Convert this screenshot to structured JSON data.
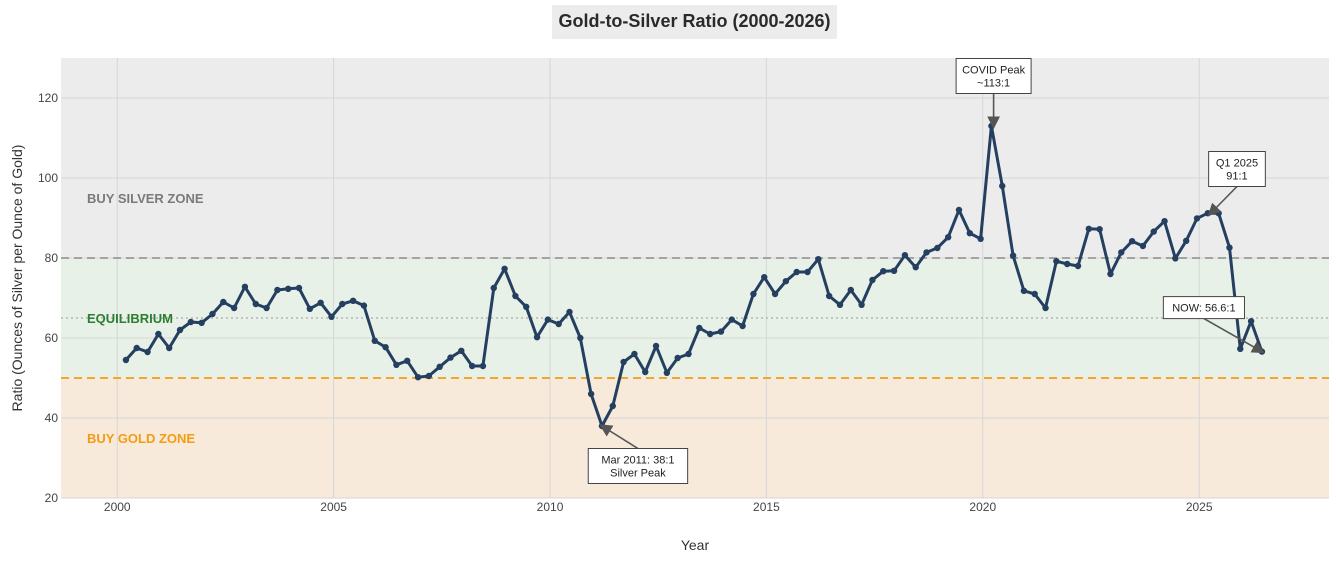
{
  "chart_data": {
    "type": "line",
    "title": "Gold-to-Silver Ratio (2000-2026)",
    "xlabel": "Year",
    "ylabel": "Ratio (Ounces of Silver per Ounce of Gold)",
    "xlim": [
      1998.7,
      2028.0
    ],
    "ylim": [
      20,
      130
    ],
    "xticks": [
      2000,
      2005,
      2010,
      2015,
      2020,
      2025
    ],
    "yticks": [
      20,
      40,
      60,
      80,
      100,
      120
    ],
    "grid": true,
    "zones": [
      {
        "label": "BUY SILVER ZONE",
        "from": 80,
        "to": 130,
        "color": "#ececec",
        "label_color": "#7a7a7a",
        "label_y": 95
      },
      {
        "label": "EQUILIBRIUM",
        "from": 50,
        "to": 80,
        "color": "#e8f1e7",
        "label_color": "#2e7d32",
        "label_y": 65
      },
      {
        "label": "BUY GOLD ZONE",
        "from": 20,
        "to": 50,
        "color": "#f8eadb",
        "label_color": "#f39c12",
        "label_y": 35
      }
    ],
    "reference_lines": [
      {
        "y": 80,
        "style": "dashed",
        "color": "#999999"
      },
      {
        "y": 65,
        "style": "dotted",
        "color": "#aaaaaa"
      },
      {
        "y": 50,
        "style": "dashed",
        "color": "#f39c12"
      }
    ],
    "series": [
      {
        "color": "#243f60",
        "x": [
          2000.2,
          2000.45,
          2000.7,
          2000.95,
          2001.2,
          2001.45,
          2001.7,
          2001.95,
          2002.2,
          2002.45,
          2002.7,
          2002.95,
          2003.2,
          2003.45,
          2003.7,
          2003.95,
          2004.2,
          2004.45,
          2004.7,
          2004.95,
          2005.2,
          2005.45,
          2005.7,
          2005.95,
          2006.2,
          2006.45,
          2006.7,
          2006.95,
          2007.2,
          2007.45,
          2007.7,
          2007.95,
          2008.2,
          2008.45,
          2008.7,
          2008.95,
          2009.2,
          2009.45,
          2009.7,
          2009.95,
          2010.2,
          2010.45,
          2010.7,
          2010.95,
          2011.2,
          2011.45,
          2011.7,
          2011.95,
          2012.2,
          2012.45,
          2012.7,
          2012.95,
          2013.2,
          2013.45,
          2013.7,
          2013.95,
          2014.2,
          2014.45,
          2014.7,
          2014.95,
          2015.2,
          2015.45,
          2015.7,
          2015.95,
          2016.2,
          2016.45,
          2016.7,
          2016.95,
          2017.2,
          2017.45,
          2017.7,
          2017.95,
          2018.2,
          2018.45,
          2018.7,
          2018.95,
          2019.2,
          2019.45,
          2019.7,
          2019.95,
          2020.2,
          2020.45,
          2020.7,
          2020.95,
          2021.2,
          2021.45,
          2021.7,
          2021.95,
          2022.2,
          2022.45,
          2022.7,
          2022.95,
          2023.2,
          2023.45,
          2023.7,
          2023.95,
          2024.2,
          2024.45,
          2024.7,
          2024.95,
          2025.2,
          2025.45,
          2025.7,
          2025.95,
          2026.2,
          2026.45
        ],
        "y": [
          54.5,
          57.5,
          56.5,
          61,
          57.5,
          62,
          64,
          63.8,
          66,
          69,
          67.5,
          72.8,
          68.5,
          67.5,
          72,
          72.3,
          72.5,
          67.3,
          68.8,
          65.3,
          68.5,
          69.3,
          68.1,
          59.3,
          57.7,
          53.3,
          54.3,
          50.2,
          50.5,
          52.8,
          55.1,
          56.8,
          53,
          53,
          72.5,
          77.3,
          70.5,
          67.8,
          60.2,
          64.6,
          63.5,
          66.5,
          60,
          46,
          38,
          43,
          54,
          56,
          51.5,
          58,
          51.3,
          55,
          56,
          62.5,
          61,
          61.6,
          64.6,
          63,
          71,
          75.2,
          71,
          74.2,
          76.5,
          76.5,
          79.7,
          70.5,
          68.3,
          72,
          68.3,
          74.5,
          76.7,
          76.8,
          80.7,
          77.7,
          81.4,
          82.5,
          85.2,
          92,
          86.2,
          84.8,
          113,
          98,
          80.6,
          71.8,
          71,
          67.5,
          79.2,
          78.5,
          78,
          87.3,
          87.2,
          76,
          81.4,
          84.2,
          83,
          86.6,
          89.2,
          79.9,
          84.3,
          89.9,
          91.2,
          91.2,
          82.6,
          57.3,
          64.2,
          56.6
        ]
      }
    ],
    "annotations": [
      {
        "lines": [
          "COVID Peak",
          "~113:1"
        ],
        "x": 2020.25,
        "y": 113
      },
      {
        "lines": [
          "Q1 2025",
          "91:1"
        ],
        "x": 2025.25,
        "y": 91
      },
      {
        "lines": [
          "NOW: 56.6:1"
        ],
        "x": 2026.45,
        "y": 56.6
      },
      {
        "lines": [
          "Mar 2011: 38:1",
          "Silver Peak"
        ],
        "x": 2011.2,
        "y": 38
      }
    ]
  }
}
